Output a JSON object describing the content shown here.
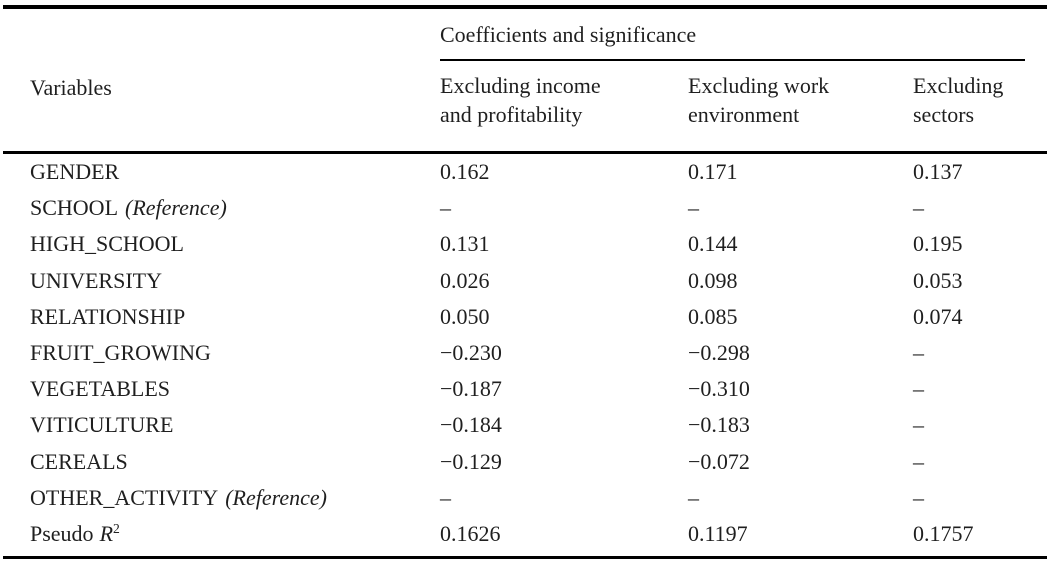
{
  "table": {
    "colors": {
      "text": "#1f1f1f",
      "rule": "#000000",
      "background": "#ffffff"
    },
    "variables_header": "Variables",
    "group_header": "Coefficients and significance",
    "columns": [
      [
        "Excluding income",
        "and profitability"
      ],
      [
        "Excluding work",
        "environment"
      ],
      [
        "Excluding",
        "sectors"
      ]
    ],
    "rows": [
      {
        "name": "GENDER",
        "ref": "",
        "cells": [
          "0.162",
          "0.171",
          "0.137"
        ]
      },
      {
        "name": "SCHOOL",
        "ref": "(Reference)",
        "cells": [
          "–",
          "–",
          "–"
        ]
      },
      {
        "name": "HIGH_SCHOOL",
        "ref": "",
        "cells": [
          "0.131",
          "0.144",
          "0.195"
        ]
      },
      {
        "name": "UNIVERSITY",
        "ref": "",
        "cells": [
          "0.026",
          "0.098",
          "0.053"
        ]
      },
      {
        "name": "RELATIONSHIP",
        "ref": "",
        "cells": [
          "0.050",
          "0.085",
          "0.074"
        ]
      },
      {
        "name": "FRUIT_GROWING",
        "ref": "",
        "cells": [
          "−0.230",
          "−0.298",
          "–"
        ]
      },
      {
        "name": "VEGETABLES",
        "ref": "",
        "cells": [
          "−0.187",
          "−0.310",
          "–"
        ]
      },
      {
        "name": "VITICULTURE",
        "ref": "",
        "cells": [
          "−0.184",
          "−0.183",
          "–"
        ]
      },
      {
        "name": "CEREALS",
        "ref": "",
        "cells": [
          "−0.129",
          "−0.072",
          "–"
        ]
      },
      {
        "name": "OTHER_ACTIVITY",
        "ref": "(Reference)",
        "cells": [
          "–",
          "–",
          "–"
        ]
      },
      {
        "name": "Pseudo",
        "rvar": "R",
        "sup": "2",
        "cells": [
          "0.1626",
          "0.1197",
          "0.1757"
        ]
      }
    ]
  }
}
